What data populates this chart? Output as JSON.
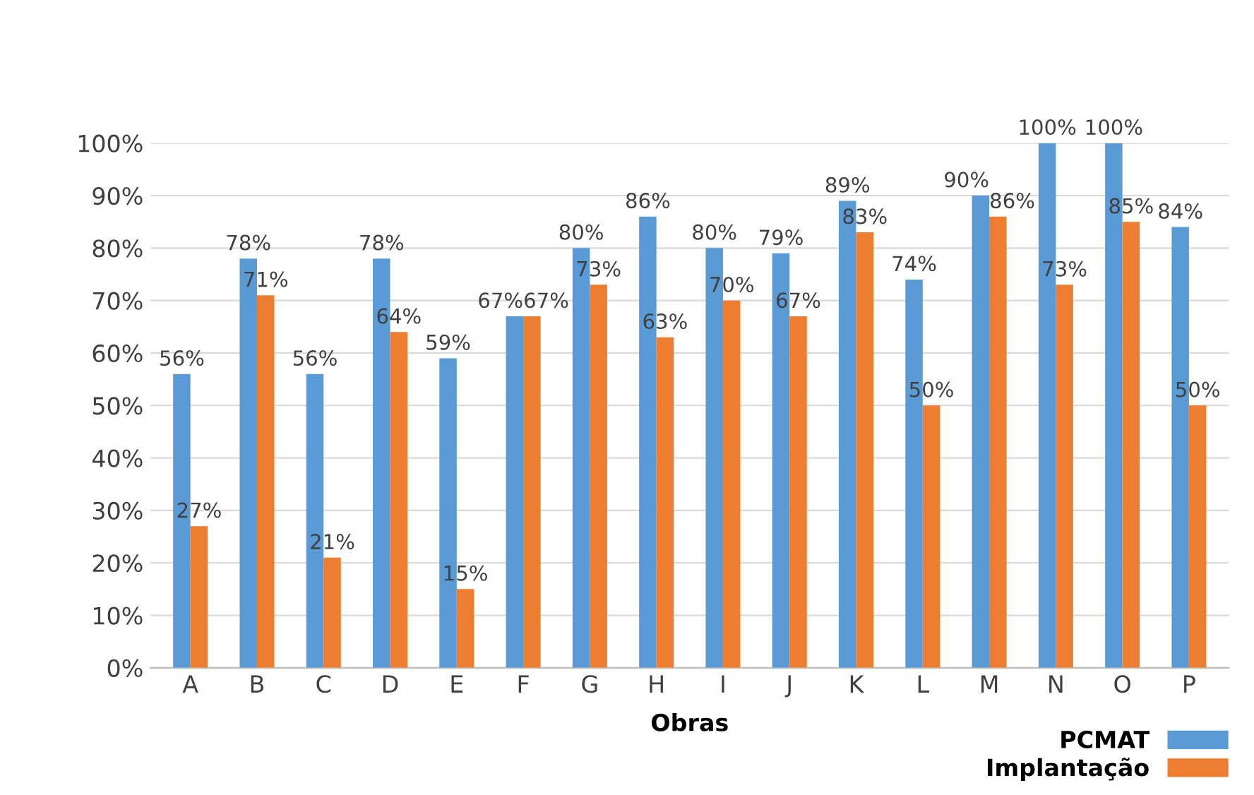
{
  "chart_data": {
    "type": "bar",
    "xlabel": "Obras",
    "categories": [
      "A",
      "B",
      "C",
      "D",
      "E",
      "F",
      "G",
      "H",
      "I",
      "J",
      "K",
      "L",
      "M",
      "N",
      "O",
      "P"
    ],
    "series": [
      {
        "name": "PCMAT",
        "color": "#5b9bd5",
        "values": [
          56,
          78,
          56,
          78,
          59,
          67,
          80,
          86,
          80,
          79,
          89,
          74,
          90,
          100,
          100,
          84
        ],
        "value_labels": [
          "56%",
          "78%",
          "56%",
          "78%",
          "59%",
          "67%",
          "80%",
          "86%",
          "80%",
          "79%",
          "89%",
          "74%",
          "90%",
          "100%",
          "100%",
          "84%"
        ]
      },
      {
        "name": "Implantação",
        "color": "#ed7d31",
        "values": [
          27,
          71,
          21,
          64,
          15,
          67,
          73,
          63,
          70,
          67,
          83,
          50,
          86,
          73,
          85,
          50
        ],
        "value_labels": [
          "27%",
          "71%",
          "21%",
          "64%",
          "15%",
          "67%",
          "73%",
          "63%",
          "70%",
          "67%",
          "83%",
          "50%",
          "86%",
          "73%",
          "85%",
          "50%"
        ]
      }
    ],
    "ylim": [
      0,
      100
    ],
    "yticks": [
      {
        "value": 0,
        "label": "0%"
      },
      {
        "value": 10,
        "label": "10%"
      },
      {
        "value": 20,
        "label": "20%"
      },
      {
        "value": 30,
        "label": "30%"
      },
      {
        "value": 40,
        "label": "40%"
      },
      {
        "value": 50,
        "label": "50%"
      },
      {
        "value": 60,
        "label": "60%"
      },
      {
        "value": 70,
        "label": "70%"
      },
      {
        "value": 80,
        "label": "80%"
      },
      {
        "value": 90,
        "label": "90%"
      },
      {
        "value": 100,
        "label": "100%"
      }
    ],
    "grid": "y",
    "legend": "bottom right"
  }
}
